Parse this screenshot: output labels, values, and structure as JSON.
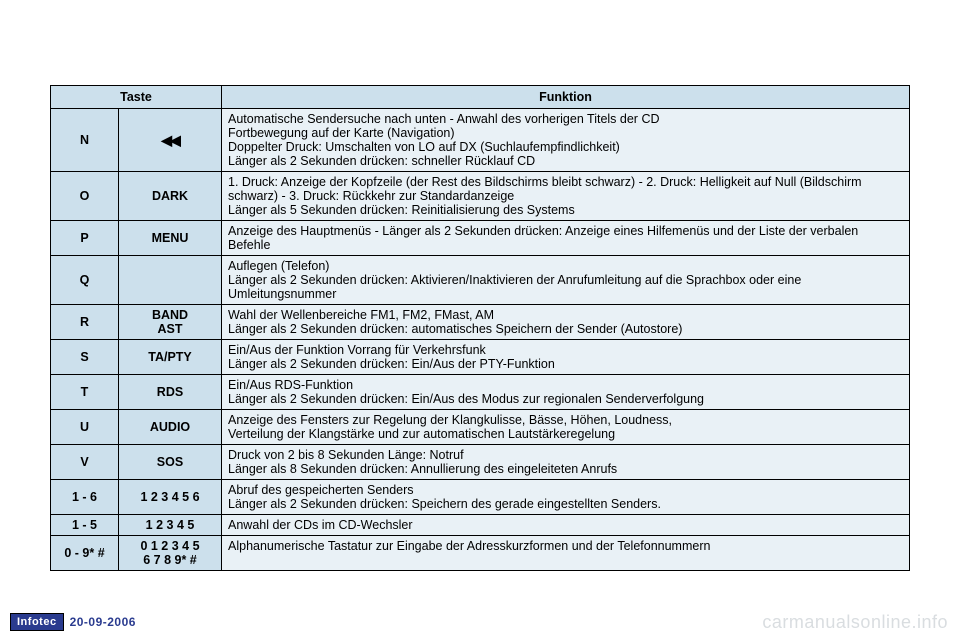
{
  "table": {
    "header": {
      "taste": "Taste",
      "funktion": "Funktion"
    },
    "rows": [
      {
        "key": "N",
        "label_html": "<span class='rewind-symbol'>◀◀</span>",
        "func": "Automatische Sendersuche nach unten - Anwahl des vorherigen Titels der CD\nFortbewegung auf der Karte (Navigation)\nDoppelter Druck: Umschalten von LO auf DX (Suchlaufempfindlichkeit)\nLänger als 2 Sekunden drücken: schneller Rücklauf CD"
      },
      {
        "key": "O",
        "label": "DARK",
        "func": "1. Druck: Anzeige der Kopfzeile (der Rest des Bildschirms bleibt schwarz) - 2. Druck: Helligkeit auf Null (Bildschirm schwarz) - 3. Druck: Rückkehr zur Standardanzeige\nLänger als 5 Sekunden drücken: Reinitialisierung des Systems"
      },
      {
        "key": "P",
        "label": "MENU",
        "func": "Anzeige des Hauptmenüs - Länger als 2 Sekunden drücken: Anzeige eines Hilfemenüs und der Liste der verbalen Befehle"
      },
      {
        "key": "Q",
        "label": "",
        "func": "Auflegen (Telefon)\nLänger als 2 Sekunden drücken: Aktivieren/Inaktivieren der Anrufumleitung auf die Sprachbox oder eine Umleitungsnummer"
      },
      {
        "key": "R",
        "label": "BAND\nAST",
        "func": "Wahl der Wellenbereiche FM1, FM2, FMast, AM\nLänger als 2 Sekunden drücken: automatisches Speichern der Sender (Autostore)"
      },
      {
        "key": "S",
        "label": "TA/PTY",
        "func": "Ein/Aus der Funktion Vorrang für Verkehrsfunk\nLänger als 2 Sekunden drücken: Ein/Aus der PTY-Funktion"
      },
      {
        "key": "T",
        "label": "RDS",
        "func": "Ein/Aus RDS-Funktion\nLänger als 2 Sekunden drücken: Ein/Aus des Modus zur regionalen Senderverfolgung"
      },
      {
        "key": "U",
        "label": "AUDIO",
        "func": "Anzeige des Fensters zur Regelung der Klangkulisse, Bässe, Höhen, Loudness,\nVerteilung der Klangstärke und zur automatischen Lautstärkeregelung"
      },
      {
        "key": "V",
        "label": "SOS",
        "func": "Druck von 2 bis 8 Sekunden Länge: Notruf\nLänger als 8 Sekunden drücken: Annullierung des eingeleiteten Anrufs"
      },
      {
        "key": "1 - 6",
        "label": "1 2 3 4 5 6",
        "func": "Abruf des gespeicherten Senders\nLänger als 2 Sekunden drücken: Speichern des gerade eingestellten Senders."
      },
      {
        "key": "1 - 5",
        "label": "1 2 3 4 5",
        "func": "Anwahl der CDs im CD-Wechsler"
      },
      {
        "key": "0 - 9* #",
        "label": "0 1 2 3 4 5\n6 7 8 9* #",
        "func": "Alphanumerische Tastatur zur Eingabe der Adresskurzformen und der Telefonnummern"
      }
    ]
  },
  "footer": {
    "brand": "Infotec",
    "date": "20-09-2006"
  },
  "watermark": "carmanualsonline.info"
}
